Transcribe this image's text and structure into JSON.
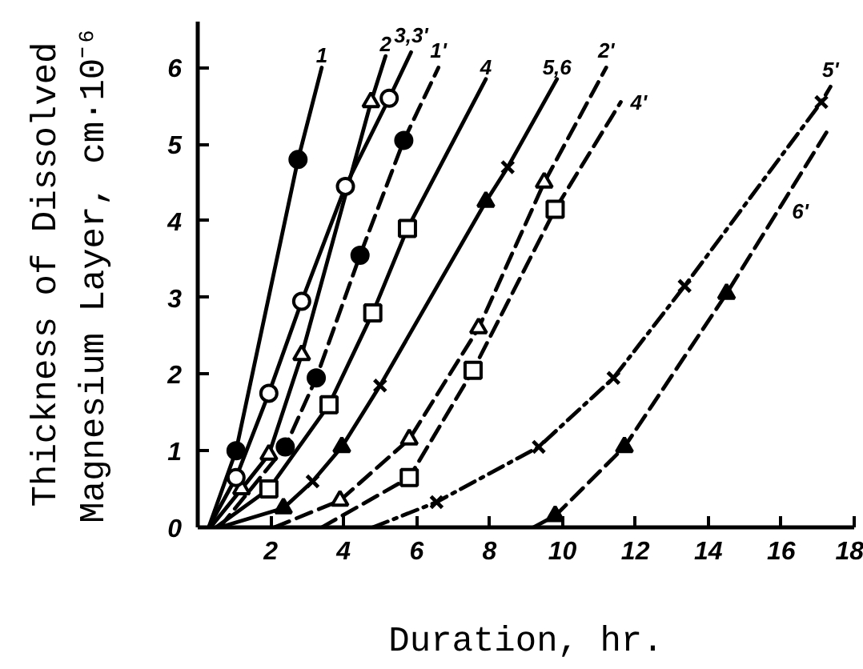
{
  "chart_data": {
    "type": "line",
    "xlabel": "Duration, hr.",
    "ylabel": "Thickness of Dissolved Magnesium Layer, cm·10⁻⁶",
    "xlim": [
      0,
      18
    ],
    "ylim": [
      0,
      6.6
    ],
    "xticks": [
      2,
      4,
      6,
      8,
      10,
      12,
      14,
      16,
      18
    ],
    "yticks": [
      0,
      1,
      2,
      3,
      4,
      5,
      6
    ],
    "grid": false,
    "series": [
      {
        "name": "1",
        "line_style": "solid",
        "color": "#000000",
        "x": [
          0.3,
          1.05,
          2.75,
          3.4
        ],
        "values": [
          0,
          1.0,
          4.8,
          6.0
        ]
      },
      {
        "type": "scatter",
        "marker": "circle",
        "color": "#000000",
        "x": [
          1.05,
          2.75
        ],
        "values": [
          1.0,
          4.8
        ]
      },
      {
        "name": "2",
        "line_style": "solid",
        "color": "#000000",
        "x": [
          0.35,
          1.2,
          1.95,
          2.85,
          4.75,
          5.15
        ],
        "values": [
          0,
          0.5,
          0.95,
          2.25,
          5.55,
          6.15
        ]
      },
      {
        "type": "scatter",
        "marker": "triangle",
        "color": "#ffffff",
        "x": [
          1.2,
          1.95,
          2.85,
          4.75
        ],
        "values": [
          0.5,
          0.95,
          2.25,
          5.55
        ]
      },
      {
        "name": "3,3'",
        "line_style": "solid",
        "color": "#000000",
        "x": [
          0.3,
          1.05,
          1.95,
          2.85,
          4.05,
          5.25,
          5.85
        ],
        "values": [
          0,
          0.65,
          1.75,
          2.95,
          4.45,
          5.6,
          6.2
        ]
      },
      {
        "type": "scatter",
        "marker": "circle",
        "color": "#ffffff",
        "x": [
          1.05,
          1.95,
          2.85,
          4.05,
          5.25
        ],
        "values": [
          0.65,
          1.75,
          2.95,
          4.45,
          5.6
        ]
      },
      {
        "name": "1'",
        "line_style": "dashed",
        "color": "#000000",
        "x": [
          0.6,
          2.4,
          3.25,
          4.45,
          5.65,
          6.6
        ],
        "values": [
          0,
          1.05,
          1.95,
          3.55,
          5.05,
          6.0
        ]
      },
      {
        "type": "scatter",
        "marker": "circle",
        "color": "#000000",
        "x": [
          2.4,
          3.25,
          4.45,
          5.65
        ],
        "values": [
          1.05,
          1.95,
          3.55,
          5.05
        ]
      },
      {
        "name": "4",
        "line_style": "solid",
        "color": "#000000",
        "x": [
          0.5,
          1.95,
          3.6,
          4.8,
          5.75,
          7.9
        ],
        "values": [
          0,
          0.5,
          1.6,
          2.8,
          3.9,
          5.85
        ]
      },
      {
        "type": "scatter",
        "marker": "square",
        "color": "#ffffff",
        "x": [
          1.95,
          3.6,
          4.8,
          5.75
        ],
        "values": [
          0.5,
          1.6,
          2.8,
          3.9
        ]
      },
      {
        "name": "5,6",
        "line_style": "solid",
        "color": "#000000",
        "x": [
          0.6,
          2.35,
          3.15,
          3.95,
          5.0,
          7.9,
          8.5,
          9.85
        ],
        "values": [
          0,
          0.25,
          0.6,
          1.05,
          1.85,
          4.25,
          4.7,
          5.85
        ]
      },
      {
        "type": "scatter",
        "marker": "cross",
        "color": "#000000",
        "x": [
          3.15,
          5.0,
          8.5
        ],
        "values": [
          0.6,
          1.85,
          4.7
        ]
      },
      {
        "type": "scatter",
        "marker": "triangle",
        "color": "#000000",
        "x": [
          2.35,
          3.95,
          7.9
        ],
        "values": [
          0.25,
          1.05,
          4.25
        ]
      },
      {
        "name": "2'",
        "line_style": "dashed",
        "color": "#000000",
        "x": [
          2.1,
          3.9,
          5.8,
          7.7,
          9.5,
          11.2
        ],
        "values": [
          0,
          0.35,
          1.15,
          2.6,
          4.5,
          6.0
        ]
      },
      {
        "type": "scatter",
        "marker": "triangle",
        "color": "#ffffff",
        "x": [
          3.9,
          5.8,
          7.7,
          9.5
        ],
        "values": [
          0.35,
          1.15,
          2.6,
          4.5
        ]
      },
      {
        "name": "4'",
        "line_style": "dashed",
        "color": "#000000",
        "x": [
          3.4,
          5.8,
          7.55,
          9.8,
          11.6
        ],
        "values": [
          0,
          0.65,
          2.05,
          4.15,
          5.55
        ]
      },
      {
        "type": "scatter",
        "marker": "square",
        "color": "#ffffff",
        "x": [
          5.8,
          7.55,
          9.8
        ],
        "values": [
          0.65,
          2.05,
          4.15
        ]
      },
      {
        "name": "5'",
        "line_style": "dashdot",
        "color": "#000000",
        "x": [
          4.8,
          6.55,
          9.35,
          11.4,
          13.35,
          17.1,
          17.35
        ],
        "values": [
          0,
          0.33,
          1.05,
          1.95,
          3.15,
          5.55,
          5.75
        ]
      },
      {
        "type": "scatter",
        "marker": "cross",
        "color": "#000000",
        "x": [
          6.55,
          9.35,
          11.4,
          13.35,
          17.1
        ],
        "values": [
          0.33,
          1.05,
          1.95,
          3.15,
          5.55
        ]
      },
      {
        "name": "6'",
        "line_style": "dashed",
        "color": "#000000",
        "x": [
          9.2,
          9.8,
          11.7,
          14.5,
          17.3
        ],
        "values": [
          0,
          0.15,
          1.05,
          3.05,
          5.2
        ]
      },
      {
        "type": "scatter",
        "marker": "triangle",
        "color": "#000000",
        "x": [
          9.8,
          11.7,
          14.5
        ],
        "values": [
          0.15,
          1.05,
          3.05
        ]
      }
    ]
  }
}
